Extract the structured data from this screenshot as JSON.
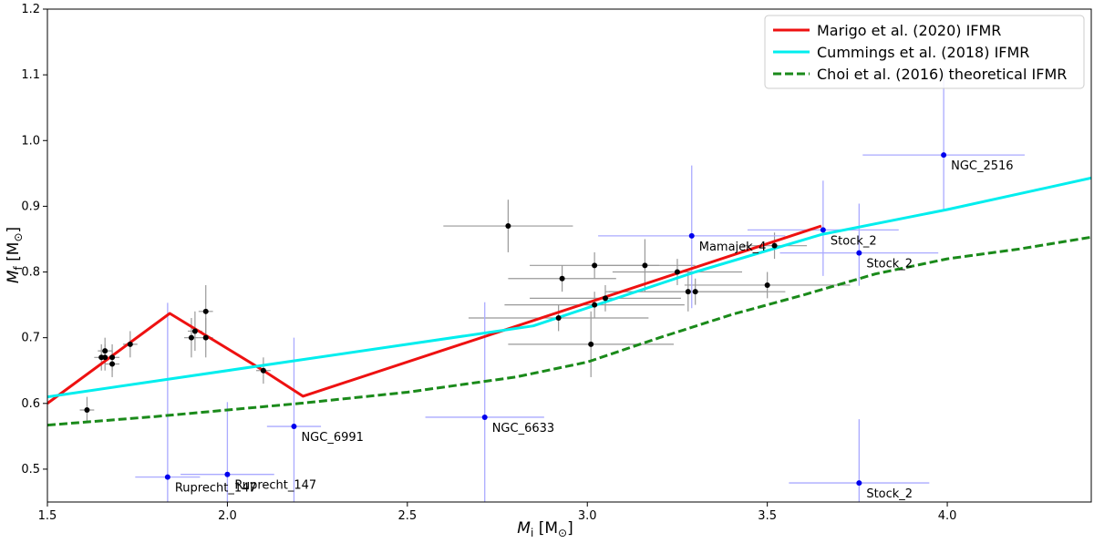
{
  "chart_data": {
    "type": "scatter",
    "xlabel_base": "M",
    "xlabel_sub": "i",
    "xlabel_unit": " [M",
    "xlabel_unit_sub": "⊙",
    "xlabel_close": "]",
    "ylabel_base": "M",
    "ylabel_sub": "f",
    "ylabel_unit": " [M",
    "ylabel_unit_sub": "⊙",
    "ylabel_close": "]",
    "xlim": [
      1.5,
      4.4
    ],
    "ylim": [
      0.45,
      1.2
    ],
    "xticks": [
      "1.5",
      "2.0",
      "2.5",
      "3.0",
      "3.5",
      "4.0"
    ],
    "xtick_values": [
      1.5,
      2.0,
      2.5,
      3.0,
      3.5,
      4.0
    ],
    "yticks": [
      "0.5",
      "0.6",
      "0.7",
      "0.8",
      "0.9",
      "1.0",
      "1.1",
      "1.2"
    ],
    "ytick_values": [
      0.5,
      0.6,
      0.7,
      0.8,
      0.9,
      1.0,
      1.1,
      1.2
    ],
    "legend_position": "top-right",
    "series": [
      {
        "name": "Marigo et al. (2020) IFMR",
        "kind": "line",
        "color": "#ee1111",
        "dash": "solid",
        "x": [
          1.5,
          1.84,
          2.1,
          2.21,
          3.65
        ],
        "y": [
          0.6,
          0.737,
          0.65,
          0.611,
          0.87
        ]
      },
      {
        "name": "Cummings et al. (2018) IFMR",
        "kind": "line",
        "color": "#00eeee",
        "dash": "solid",
        "x": [
          1.5,
          2.85,
          3.3,
          3.65,
          4.0,
          4.4
        ],
        "y": [
          0.61,
          0.718,
          0.8,
          0.857,
          0.895,
          0.943
        ]
      },
      {
        "name": "Choi et al. (2016) theoretical IFMR",
        "kind": "line",
        "color": "#1a8a1a",
        "dash": "dashed",
        "x": [
          1.5,
          1.8,
          2.0,
          2.2,
          2.5,
          2.8,
          3.0,
          3.2,
          3.4,
          3.6,
          3.8,
          4.0,
          4.2,
          4.4
        ],
        "y": [
          0.567,
          0.58,
          0.59,
          0.6,
          0.617,
          0.64,
          0.663,
          0.7,
          0.735,
          0.765,
          0.797,
          0.82,
          0.835,
          0.853
        ]
      }
    ],
    "black_points": [
      {
        "x": 1.61,
        "y": 0.59,
        "xerr": 0.02,
        "yerr": 0.02
      },
      {
        "x": 1.65,
        "y": 0.67,
        "xerr": 0.02,
        "yerr": 0.02
      },
      {
        "x": 1.66,
        "y": 0.68,
        "xerr": 0.02,
        "yerr": 0.02
      },
      {
        "x": 1.66,
        "y": 0.67,
        "xerr": 0.02,
        "yerr": 0.02
      },
      {
        "x": 1.68,
        "y": 0.66,
        "xerr": 0.02,
        "yerr": 0.02
      },
      {
        "x": 1.68,
        "y": 0.67,
        "xerr": 0.02,
        "yerr": 0.02
      },
      {
        "x": 1.73,
        "y": 0.69,
        "xerr": 0.02,
        "yerr": 0.02
      },
      {
        "x": 1.9,
        "y": 0.7,
        "xerr": 0.02,
        "yerr": 0.03
      },
      {
        "x": 1.91,
        "y": 0.71,
        "xerr": 0.02,
        "yerr": 0.03
      },
      {
        "x": 1.94,
        "y": 0.74,
        "xerr": 0.02,
        "yerr": 0.04
      },
      {
        "x": 1.94,
        "y": 0.7,
        "xerr": 0.02,
        "yerr": 0.03
      },
      {
        "x": 2.1,
        "y": 0.65,
        "xerr": 0.02,
        "yerr": 0.02
      },
      {
        "x": 2.78,
        "y": 0.87,
        "xerr": 0.18,
        "yerr": 0.04
      },
      {
        "x": 2.92,
        "y": 0.73,
        "xerr": 0.25,
        "yerr": 0.02
      },
      {
        "x": 2.93,
        "y": 0.79,
        "xerr": 0.15,
        "yerr": 0.02
      },
      {
        "x": 3.01,
        "y": 0.69,
        "xerr": 0.23,
        "yerr": 0.05
      },
      {
        "x": 3.02,
        "y": 0.81,
        "xerr": 0.18,
        "yerr": 0.02
      },
      {
        "x": 3.02,
        "y": 0.75,
        "xerr": 0.25,
        "yerr": 0.02
      },
      {
        "x": 3.05,
        "y": 0.76,
        "xerr": 0.21,
        "yerr": 0.02
      },
      {
        "x": 3.16,
        "y": 0.81,
        "xerr": 0.14,
        "yerr": 0.04
      },
      {
        "x": 3.25,
        "y": 0.8,
        "xerr": 0.18,
        "yerr": 0.02
      },
      {
        "x": 3.28,
        "y": 0.77,
        "xerr": 0.22,
        "yerr": 0.03
      },
      {
        "x": 3.3,
        "y": 0.77,
        "xerr": 0.25,
        "yerr": 0.02
      },
      {
        "x": 3.5,
        "y": 0.78,
        "xerr": 0.23,
        "yerr": 0.02
      },
      {
        "x": 3.52,
        "y": 0.84,
        "xerr": 0.09,
        "yerr": 0.02
      }
    ],
    "blue_points": [
      {
        "label": "Ruprecht_147",
        "x": 1.834,
        "y": 0.488,
        "xerr": 0.09,
        "yerr_up": 0.265,
        "yerr_down": 0.04
      },
      {
        "label": "Ruprecht_147",
        "x": 2.0,
        "y": 0.492,
        "xerr": 0.13,
        "yerr_up": 0.11,
        "yerr_down": 0.05
      },
      {
        "label": "NGC_6991",
        "x": 2.185,
        "y": 0.565,
        "xerr": 0.075,
        "yerr_up": 0.135,
        "yerr_down": 0.12
      },
      {
        "label": "NGC_6633",
        "x": 2.715,
        "y": 0.579,
        "xerr": 0.165,
        "yerr_up": 0.175,
        "yerr_down": 0.13
      },
      {
        "label": "Mamajek_4",
        "x": 3.29,
        "y": 0.855,
        "xerr": 0.26,
        "yerr_up": 0.107,
        "yerr_down": 0.11
      },
      {
        "label": "Stock_2",
        "x": 3.655,
        "y": 0.864,
        "xerr": 0.21,
        "yerr_up": 0.075,
        "yerr_down": 0.07
      },
      {
        "label": "Stock_2",
        "x": 3.755,
        "y": 0.829,
        "xerr": 0.22,
        "yerr_up": 0.075,
        "yerr_down": 0.05
      },
      {
        "label": "Stock_2",
        "x": 3.755,
        "y": 0.479,
        "xerr": 0.195,
        "yerr_up": 0.097,
        "yerr_down": 0.04
      },
      {
        "label": "NGC_2516",
        "x": 3.99,
        "y": 0.978,
        "xerr": 0.225,
        "yerr_up": 0.13,
        "yerr_down": 0.085
      }
    ],
    "colors": {
      "black_point": "#000000",
      "black_error": "#999999",
      "blue_point": "#0000ee",
      "blue_error": "#aaaaff"
    }
  }
}
